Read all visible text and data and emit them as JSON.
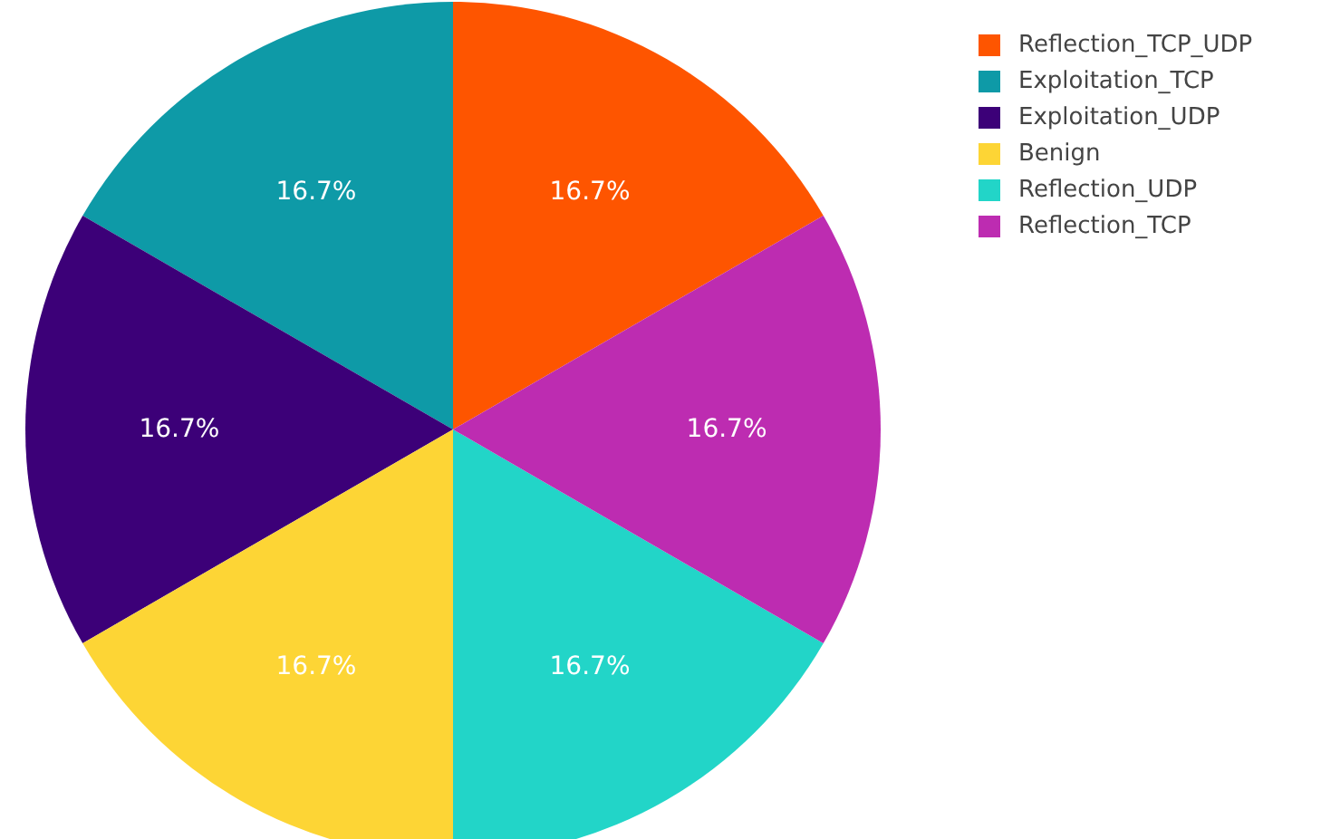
{
  "chart_data": {
    "type": "pie",
    "categories": [
      "Reflection_TCP_UDP",
      "Exploitation_TCP",
      "Exploitation_UDP",
      "Benign",
      "Reflection_UDP",
      "Reflection_TCP"
    ],
    "values": [
      16.7,
      16.7,
      16.7,
      16.7,
      16.7,
      16.7
    ],
    "colors": [
      "#fe5500",
      "#0e9aa7",
      "#3c0078",
      "#fdd535",
      "#22d5c8",
      "#bd2cb1"
    ],
    "value_labels": [
      "16.7%",
      "16.7%",
      "16.7%",
      "16.7%",
      "16.7%",
      "16.7%"
    ],
    "legend": "top right"
  }
}
